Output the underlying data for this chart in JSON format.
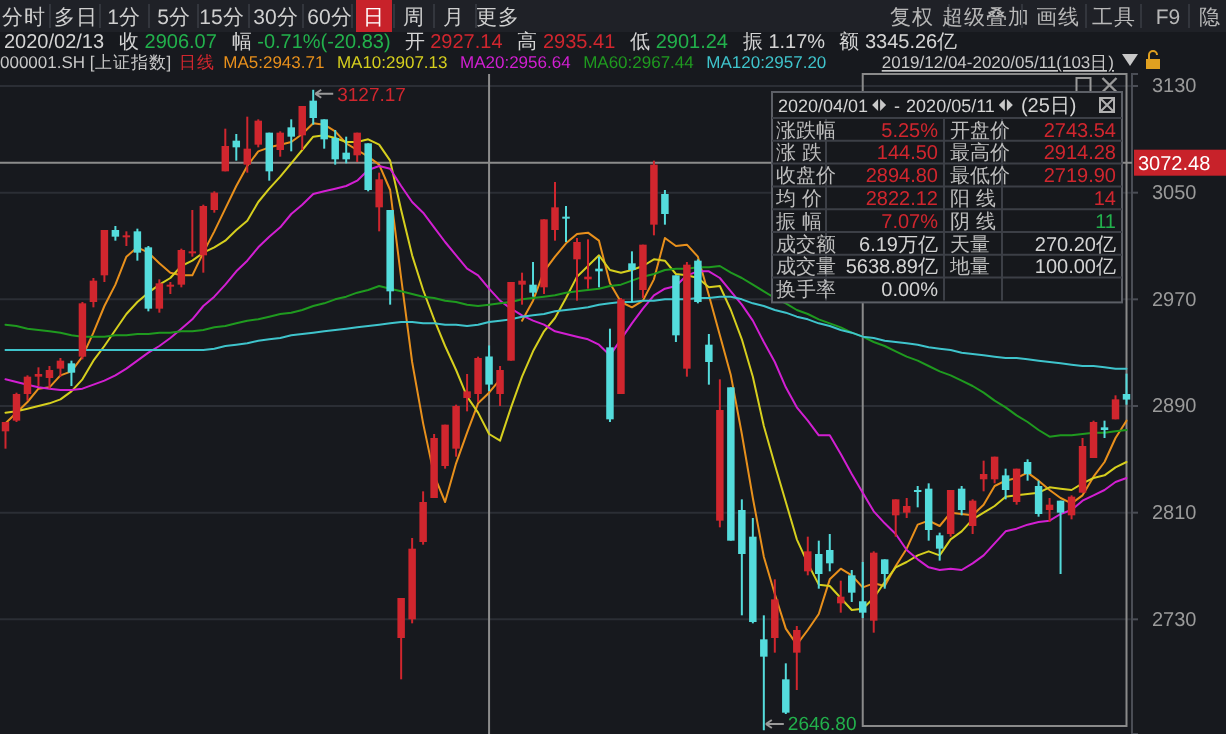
{
  "chart_data": {
    "type": "candlestick",
    "categories": [
      null,
      null,
      null,
      null,
      null,
      null,
      null,
      null,
      null,
      null,
      null,
      null,
      null,
      null,
      null,
      null,
      null,
      null,
      null,
      null,
      null,
      null,
      null,
      null,
      null,
      null,
      null,
      null,
      null,
      null,
      null,
      null,
      null,
      null,
      null,
      null,
      null,
      null,
      null,
      null,
      null,
      null,
      null,
      null,
      null,
      null,
      null,
      null,
      null,
      null,
      null,
      null,
      null,
      null,
      null,
      null,
      null,
      null,
      null,
      null,
      null,
      null,
      null,
      null,
      null,
      null,
      null,
      null,
      null,
      null,
      null,
      null,
      null,
      null,
      null,
      null,
      null,
      null,
      null,
      null,
      null,
      null,
      null,
      null,
      null,
      null,
      null,
      null,
      null,
      null,
      null,
      null,
      null,
      null,
      null,
      null,
      null,
      null,
      null,
      null,
      null,
      null,
      null
    ],
    "ohlc": [
      [
        2871,
        2878,
        2858,
        2878
      ],
      [
        2879,
        2900,
        2878,
        2899
      ],
      [
        2899,
        2913,
        2894,
        2912
      ],
      [
        2912,
        2919,
        2905,
        2914
      ],
      [
        2911,
        2920,
        2903,
        2917
      ],
      [
        2918,
        2926,
        2912,
        2924
      ],
      [
        2922,
        2924,
        2905,
        2915
      ],
      [
        2927,
        2968,
        2925,
        2967
      ],
      [
        2968,
        2986,
        2964,
        2984
      ],
      [
        2988,
        3022,
        2983,
        3022
      ],
      [
        3022,
        3025,
        3014,
        3017
      ],
      [
        3017,
        3021,
        3010,
        3018
      ],
      [
        3021,
        3023,
        2999,
        3005
      ],
      [
        3009,
        3010,
        2961,
        2963
      ],
      [
        2963,
        2985,
        2960,
        2982
      ],
      [
        2980,
        2983,
        2974,
        2981
      ],
      [
        2981,
        3008,
        2979,
        3007
      ],
      [
        3006,
        3037,
        3002,
        3006
      ],
      [
        3003,
        3041,
        2990,
        3040
      ],
      [
        3037,
        3051,
        3035,
        3050
      ],
      [
        3066,
        3098,
        3066,
        3085
      ],
      [
        3089,
        3094,
        3074,
        3084
      ],
      [
        3071,
        3107,
        3065,
        3083
      ],
      [
        3086,
        3105,
        3084,
        3104
      ],
      [
        3095,
        3095,
        3059,
        3066
      ],
      [
        3082,
        3096,
        3077,
        3095
      ],
      [
        3099,
        3105,
        3081,
        3092
      ],
      [
        3093,
        3115,
        3082,
        3115
      ],
      [
        3119,
        3127.17,
        3101,
        3106
      ],
      [
        3105,
        3105,
        3083,
        3090
      ],
      [
        3091,
        3097,
        3071,
        3075
      ],
      [
        3080,
        3092,
        3072,
        3075
      ],
      [
        3078,
        3095,
        3073,
        3095
      ],
      [
        3087,
        3087,
        3051,
        3052
      ],
      [
        3039,
        3065,
        3021,
        3060
      ],
      [
        3037,
        3037,
        2966,
        2976
      ],
      [
        2716,
        2746,
        2685,
        2746
      ],
      [
        2730,
        2791,
        2727,
        2783
      ],
      [
        2788,
        2826,
        2786,
        2818
      ],
      [
        2821,
        2869,
        2821,
        2866
      ],
      [
        2845,
        2876,
        2843,
        2876
      ],
      [
        2858,
        2891,
        2852,
        2890
      ],
      [
        2896,
        2914,
        2886,
        2901
      ],
      [
        2899,
        2927,
        2893,
        2926
      ],
      [
        2927.14,
        2935.41,
        2901.24,
        2906.07
      ],
      [
        2899,
        2920,
        2890,
        2917
      ],
      [
        2924,
        2983,
        2924,
        2983
      ],
      [
        2981,
        2990,
        2966,
        2984
      ],
      [
        2981,
        2998,
        2972,
        2975
      ],
      [
        2979,
        3030,
        2974,
        3030
      ],
      [
        3022,
        3058,
        3014,
        3039
      ],
      [
        3032,
        3040,
        3013,
        3031
      ],
      [
        3000,
        3016,
        2969,
        3013
      ],
      [
        2985,
        3015,
        2978,
        2987
      ],
      [
        2993,
        3002,
        2979,
        2991
      ],
      [
        2934,
        2948,
        2878,
        2880
      ],
      [
        2899,
        2971,
        2899,
        2970
      ],
      [
        2997,
        3006,
        2968,
        2992
      ],
      [
        2977,
        3011,
        2971,
        3011
      ],
      [
        3026,
        3074,
        3018,
        3071
      ],
      [
        3049,
        3052,
        3026,
        3034
      ],
      [
        2988,
        2988,
        2938,
        2943
      ],
      [
        2918,
        2998,
        2912,
        2996
      ],
      [
        2999,
        3000,
        2967,
        2968
      ],
      [
        2936,
        2944,
        2906,
        2923
      ],
      [
        2804,
        2910,
        2799,
        2887
      ],
      [
        2904,
        2904,
        2789,
        2789
      ],
      [
        2812,
        2820,
        2733,
        2779
      ],
      [
        2792,
        2806,
        2727,
        2728
      ],
      [
        2715,
        2733,
        2646.8,
        2702
      ],
      [
        2716,
        2760,
        2705,
        2745
      ],
      [
        2685,
        2697,
        2659,
        2660
      ],
      [
        2705,
        2725,
        2677,
        2722
      ],
      [
        2766,
        2792,
        2763,
        2781
      ],
      [
        2779,
        2789,
        2753,
        2764
      ],
      [
        2782,
        2794,
        2766,
        2772
      ],
      [
        2742,
        2759,
        2735,
        2747
      ],
      [
        2763,
        2767,
        2743,
        2750
      ],
      [
        2743.54,
        2773,
        2731,
        2735
      ],
      [
        2729,
        2781,
        2720,
        2780
      ],
      [
        2775,
        2775,
        2753,
        2764
      ],
      [
        2808,
        2820,
        2792,
        2820
      ],
      [
        2810,
        2821,
        2806,
        2815
      ],
      [
        2827,
        2830,
        2814,
        2826
      ],
      [
        2828,
        2832,
        2789,
        2797
      ],
      [
        2793,
        2795,
        2774,
        2783
      ],
      [
        2794,
        2827,
        2792,
        2827
      ],
      [
        2828,
        2830,
        2808,
        2812
      ],
      [
        2800,
        2820,
        2794,
        2819
      ],
      [
        2835,
        2849,
        2826,
        2839
      ],
      [
        2835,
        2852,
        2832,
        2852
      ],
      [
        2838,
        2843,
        2820,
        2827
      ],
      [
        2818,
        2843,
        2816,
        2843
      ],
      [
        2848,
        2850,
        2834,
        2839
      ],
      [
        2830,
        2834,
        2807,
        2809
      ],
      [
        2812,
        2821,
        2803,
        2816
      ],
      [
        2819,
        2819,
        2764,
        2810
      ],
      [
        2808,
        2823,
        2805,
        2822
      ],
      [
        2825,
        2866,
        2825,
        2860
      ],
      [
        2851,
        2879,
        2851,
        2878
      ],
      [
        2874,
        2879,
        2866,
        2872
      ],
      [
        2880,
        2898,
        2880,
        2895
      ],
      [
        2899,
        2914.28,
        2891,
        2894.8
      ]
    ],
    "series": [
      {
        "type": "line",
        "name": "MA5:2943.71",
        "color": "#e8901c",
        "values": [
          2877,
          2885,
          2893,
          2903,
          2904,
          2913,
          2916,
          2927,
          2945,
          2965,
          2981,
          3002,
          3009,
          3005,
          2997,
          2990,
          2988,
          2988,
          3005,
          3021,
          3038,
          3055,
          3070,
          3081,
          3084,
          3086,
          3088,
          3094,
          3102,
          3101,
          3096,
          3087,
          3082,
          3077,
          3071,
          3052,
          2986,
          2923,
          2877,
          2838,
          2818,
          2847,
          2870,
          2892,
          2900,
          2910,
          null,
          2954,
          2969,
          2991,
          3002,
          3012,
          3019,
          3020,
          3014,
          2982,
          2968,
          2964,
          2969,
          2985,
          3016,
          3010,
          3011,
          3002,
          2973,
          2943,
          2913,
          2869,
          2821,
          2777,
          2749,
          2723,
          2711,
          2722,
          2734,
          2760,
          2768,
          2763,
          2754,
          2757,
          2755,
          2770,
          2783,
          2801,
          2804,
          2800,
          2810,
          2809,
          2808,
          2816,
          2830,
          2834,
          2836,
          2840,
          2834,
          2827,
          2821,
          2817,
          2823,
          2837,
          2848,
          2866,
          2879
        ]
      },
      {
        "type": "line",
        "name": "MA10:2907.13",
        "color": "#d6cf1e",
        "values": [
          2885,
          2886,
          2888,
          2890,
          2892,
          2895,
          2901,
          2910,
          2924,
          2935,
          2947,
          2959,
          2968,
          2975,
          2981,
          2986,
          2995,
          2999,
          3005,
          3009,
          3014,
          3022,
          3029,
          3043,
          3053,
          3062,
          3072,
          3082,
          3092,
          3093,
          3091,
          3088,
          3088,
          3090,
          3086,
          3074,
          3037,
          3003,
          2977,
          2955,
          2935,
          2917,
          2897,
          2885,
          2869,
          2864,
          2889,
          2912,
          2931,
          2946,
          2956,
          2971,
          2987,
          2995,
          3003,
          2992,
          2990,
          2992,
          2995,
          3000,
          2999,
          2989,
          2988,
          2986,
          2979,
          2980,
          2962,
          2940,
          2912,
          2875,
          2846,
          2818,
          2790,
          2772,
          2756,
          2755,
          2746,
          2737,
          2738,
          2746,
          2758,
          2769,
          2773,
          2778,
          2781,
          2778,
          2790,
          2796,
          2805,
          2810,
          2815,
          2822,
          2823,
          2824,
          2825,
          2829,
          2828,
          2827,
          2832,
          2836,
          2838,
          2844,
          2848
        ]
      },
      {
        "type": "line",
        "name": "MA20:2956.64",
        "color": "#d21fd2",
        "values": [
          2910,
          2908,
          2906,
          2904,
          2903,
          2902,
          2902,
          2903,
          2906,
          2909,
          2913,
          2918,
          2924,
          2930,
          2935,
          2941,
          2948,
          2955,
          2965,
          2972,
          2981,
          2991,
          2999,
          3009,
          3017,
          3024,
          3034,
          3041,
          3049,
          3051,
          3053,
          3055,
          3059,
          3067,
          3070,
          3068,
          3055,
          3043,
          3035,
          3024,
          3013,
          3003,
          2993,
          2988,
          2978,
          2969,
          2963,
          2958,
          2954,
          2951,
          2946,
          2944,
          2942,
          2940,
          2936,
          2928,
          2940,
          2952,
          2963,
          2973,
          2978,
          2980,
          2988,
          2991,
          2991,
          2986,
          2976,
          2966,
          2954,
          2938,
          2923,
          2904,
          2889,
          2879,
          2868,
          2868,
          2854,
          2839,
          2825,
          2811,
          2802,
          2794,
          2782,
          2775,
          2769,
          2767,
          2768,
          2767,
          2772,
          2778,
          2787,
          2796,
          2798,
          2801,
          2803,
          2804,
          2809,
          2812,
          2819,
          2823,
          2827,
          2833,
          2836
        ]
      },
      {
        "type": "line",
        "name": "MA60:2967.44",
        "color": "#1f9a1f",
        "values": [
          2951,
          2950,
          2948,
          2947,
          2946,
          2945,
          2943,
          2942,
          2942,
          2942,
          2943,
          2943,
          2944,
          2944,
          2945,
          2945,
          2946,
          2946,
          2947,
          2949,
          2950,
          2952,
          2954,
          2955,
          2957,
          2959,
          2960,
          2962,
          2965,
          2967,
          2970,
          2972,
          2975,
          2977,
          2980,
          2978,
          2976,
          2974,
          2972,
          2971,
          2969,
          2968,
          2966,
          2965,
          2966,
          2967,
          2968,
          2970,
          2971,
          2972,
          2973,
          2975,
          2976,
          2977,
          2978,
          2980,
          2981,
          2984,
          2987,
          2989,
          2992,
          2993,
          2993,
          2994,
          2994,
          2995,
          2990,
          2986,
          2981,
          2976,
          2971,
          2967,
          2962,
          2959,
          2955,
          2952,
          2949,
          2945,
          2942,
          2938,
          2935,
          2931,
          2927,
          2924,
          2920,
          2916,
          2913,
          2909,
          2905,
          2900,
          2894,
          2889,
          2883,
          2878,
          2872,
          2867,
          2868,
          2868,
          2869,
          2870,
          2870,
          2871,
          2872
        ]
      },
      {
        "type": "line",
        "name": "MA120:2957.20",
        "color": "#3fc4cc",
        "values": [
          2932,
          2932,
          2932,
          2932,
          2932,
          2932,
          2932,
          2932,
          2932,
          2932,
          2932,
          2932,
          2932,
          2932,
          2932,
          2932,
          2932,
          2932,
          2932,
          2933,
          2935,
          2936,
          2937,
          2939,
          2940,
          2941,
          2943,
          2944,
          2945,
          2946,
          2947,
          2948,
          2949,
          2950,
          2951,
          2952,
          2953,
          2953,
          2952,
          2952,
          2951,
          2951,
          2950,
          2951,
          2953,
          2954,
          2955,
          2957,
          2958,
          2959,
          2961,
          2962,
          2963,
          2964,
          2966,
          2967,
          2968,
          2968,
          2969,
          2969,
          2970,
          2970,
          2970,
          2971,
          2971,
          2972,
          2972,
          2970,
          2967,
          2965,
          2962,
          2960,
          2957,
          2955,
          2952,
          2950,
          2947,
          2945,
          2942,
          2941,
          2939,
          2938,
          2937,
          2936,
          2934,
          2933,
          2932,
          2930,
          2929,
          2928,
          2927,
          2926,
          2926,
          2925,
          2924,
          2923,
          2922,
          2921,
          2920,
          2920,
          2919,
          2918,
          2918
        ]
      }
    ],
    "ylim": [
      2644,
      3139
    ],
    "yticks": [
      2730,
      2810,
      2890,
      2970,
      3050,
      3130
    ],
    "grid": "y",
    "tick_labels": "y",
    "legend": "top",
    "ref_lines": [
      {
        "axis": "y",
        "value": 3072.48,
        "label": "3072.48"
      }
    ],
    "annotations": [
      "分时",
      "多日",
      "1分",
      "5分",
      "15分",
      "30分",
      "60分",
      "日",
      "周",
      "月",
      "更多",
      "复权",
      "超级叠加",
      "画线",
      "工具",
      "F9",
      "隐",
      "2020/02/13",
      "收 2906.07",
      "幅 -0.71%(-20.83)",
      "开 2927.14",
      "高 2935.41",
      "低 2901.24",
      "振 1.17%",
      "额 3345.26亿",
      "000001.SH [上证指数]",
      "日线",
      "2019/12/04-2020/05/11(103日)",
      "2020/04/01",
      "-",
      "2020/05/11",
      "(25日)",
      "涨跌幅",
      "5.25%",
      "开盘价",
      "2743.54",
      "涨 跌",
      "144.50",
      "最高价",
      "2914.28",
      "收盘价",
      "2894.80",
      "最低价",
      "2719.90",
      "均 价",
      "2822.12",
      "阳 线",
      "14",
      "振 幅",
      "7.07%",
      "阴 线",
      "11",
      "成交额",
      "6.19万亿",
      "天量",
      "270.20亿",
      "成交量",
      "5638.89亿",
      "地量",
      "100.00亿",
      "换手率",
      "0.00%",
      "3127.17",
      "2646.80"
    ]
  }
}
